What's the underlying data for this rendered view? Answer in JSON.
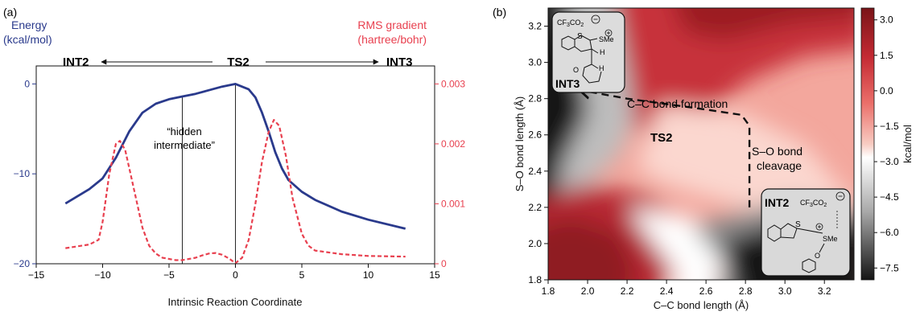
{
  "panel_a": {
    "label": "(a)",
    "left_axis_title": [
      "Energy",
      "(kcal/mol)"
    ],
    "right_axis_title": [
      "RMS gradient",
      "(hartree/bohr)"
    ],
    "left_label": "INT2",
    "center_label": "TS2",
    "right_label": "INT3",
    "annotation": [
      "“hidden",
      "intermediate”"
    ],
    "colors": {
      "energy": "#2a3a8c",
      "gradient": "#e8404f",
      "left_axis": "#2a3a8c",
      "right_axis": "#e8404f"
    }
  },
  "panel_b": {
    "label": "(b)",
    "path_labels": {
      "formation": "C–C bond formation",
      "ts": "TS2",
      "cleavage": [
        "S–O bond",
        "cleavage"
      ]
    },
    "int3_label": "INT3",
    "int2_label": "INT2",
    "int3_chem": {
      "anion_1": "CF",
      "anion_2": "3",
      "anion_3": "CO",
      "anion_4": "2",
      "S": "S",
      "SMe": "SMe",
      "H1": "H",
      "H2": "H",
      "O": "O"
    },
    "int2_chem": {
      "anion_1": "CF",
      "anion_2": "3",
      "anion_3": "CO",
      "anion_4": "2",
      "S": "S",
      "SMe": "SMe",
      "O": "O"
    },
    "colorbar": {
      "label": "kcal/mol",
      "ticks": [
        "3.0",
        "1.5",
        "0.0",
        "−1.5",
        "−3.0",
        "−4.5",
        "−6.0",
        "−7.5"
      ]
    }
  },
  "chart_data": [
    {
      "type": "line",
      "panel": "a",
      "xlabel": "Intrinsic Reaction Coordinate",
      "ylabel": "Energy (kcal/mol)",
      "y2label": "RMS gradient (hartree/bohr)",
      "xlim": [
        -15,
        15
      ],
      "ylim": [
        -20,
        2
      ],
      "y2lim": [
        0,
        0.0033
      ],
      "x_ticks": [
        "−15",
        "−10",
        "−5",
        "0",
        "5",
        "10",
        "15"
      ],
      "y_ticks": [
        "0",
        "−10",
        "−20"
      ],
      "y2_ticks": [
        "0.003",
        "0.002",
        "0.001",
        "0"
      ],
      "series": [
        {
          "name": "Energy",
          "axis": "left",
          "style": "solid",
          "x": [
            -12.8,
            -11,
            -10,
            -9,
            -8,
            -7,
            -6,
            -5,
            -4,
            -3,
            -2,
            -1,
            0,
            1,
            1.5,
            2,
            2.5,
            3,
            3.5,
            4,
            5,
            6,
            8,
            10,
            12.8
          ],
          "y": [
            -13.3,
            -11.7,
            -10.5,
            -8.2,
            -5.3,
            -3.2,
            -2.2,
            -1.7,
            -1.4,
            -1.1,
            -0.7,
            -0.3,
            0,
            -0.6,
            -1.5,
            -3.2,
            -5.3,
            -7.6,
            -9.4,
            -10.7,
            -12.0,
            -12.9,
            -14.2,
            -15.1,
            -16.1
          ]
        },
        {
          "name": "RMS gradient",
          "axis": "right",
          "style": "dashed",
          "x": [
            -12.8,
            -11,
            -10.3,
            -10,
            -9.5,
            -9,
            -8.7,
            -8.3,
            -8,
            -7.5,
            -7,
            -6.5,
            -6,
            -5.5,
            -5,
            -4.5,
            -4,
            -3.5,
            -3,
            -2.5,
            -2,
            -1.5,
            -1,
            -0.5,
            0,
            0.5,
            1,
            1.5,
            2,
            2.5,
            2.9,
            3.3,
            3.8,
            4.3,
            5,
            5.5,
            6,
            8,
            10,
            12.8
          ],
          "y": [
            0.00026,
            0.00032,
            0.0004,
            0.0007,
            0.0015,
            0.002,
            0.00205,
            0.0019,
            0.0016,
            0.0011,
            0.0006,
            0.0003,
            0.00017,
            0.0001,
            8e-05,
            6e-05,
            6e-05,
            8e-05,
            0.0001,
            0.00014,
            0.00017,
            0.00018,
            0.00015,
            9e-05,
            1e-05,
            0.0001,
            0.0004,
            0.001,
            0.0017,
            0.0022,
            0.0024,
            0.0023,
            0.0018,
            0.0011,
            0.0005,
            0.0003,
            0.00022,
            0.00016,
            0.00013,
            0.00012
          ]
        }
      ],
      "vlines": [
        -4,
        0
      ]
    },
    {
      "type": "heatmap",
      "panel": "b",
      "xlabel": "C–C bond length (Å)",
      "ylabel": "S–O bond length (Å)",
      "xlim": [
        1.8,
        3.35
      ],
      "ylim": [
        1.8,
        3.3
      ],
      "x_ticks": [
        "1.8",
        "2.0",
        "2.2",
        "2.4",
        "2.6",
        "2.8",
        "3.0",
        "3.2"
      ],
      "y_ticks": [
        "1.8",
        "2.0",
        "2.2",
        "2.4",
        "2.6",
        "2.8",
        "3.0",
        "3.2"
      ],
      "zlim": [
        -8,
        3.5
      ],
      "path": {
        "x": [
          2.82,
          2.82,
          2.82,
          2.78,
          2.6,
          2.4,
          2.2,
          2.0,
          1.95
        ],
        "y": [
          2.2,
          2.45,
          2.65,
          2.71,
          2.74,
          2.77,
          2.8,
          2.84,
          2.86
        ]
      }
    }
  ]
}
